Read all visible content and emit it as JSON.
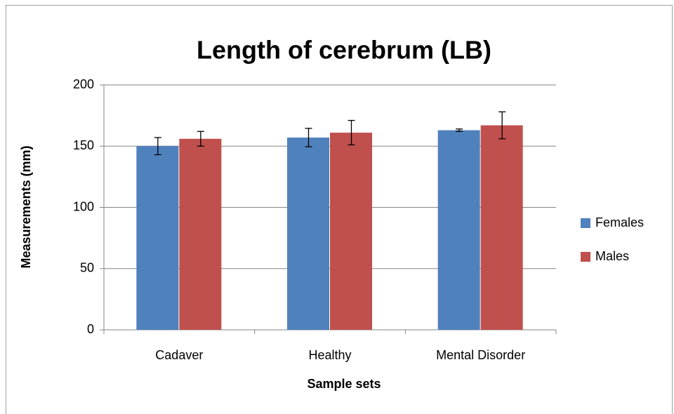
{
  "chart_data": {
    "type": "bar",
    "title": "Length of cerebrum (LB)",
    "x_label": "Sample sets",
    "y_label": "Measurements (mm)",
    "categories": [
      "Cadaver",
      "Healthy",
      "Mental Disorder"
    ],
    "series": [
      {
        "name": "Females",
        "color": "#4f81bd",
        "values": [
          150,
          157,
          163
        ],
        "errors": [
          7,
          7.5,
          1
        ]
      },
      {
        "name": "Males",
        "color": "#c0504d",
        "values": [
          156,
          161,
          167
        ],
        "errors": [
          6,
          10,
          11
        ]
      }
    ],
    "ylim": [
      0,
      200
    ],
    "yticks": [
      0,
      50,
      100,
      150,
      200
    ],
    "grid": true,
    "legend": "right"
  }
}
